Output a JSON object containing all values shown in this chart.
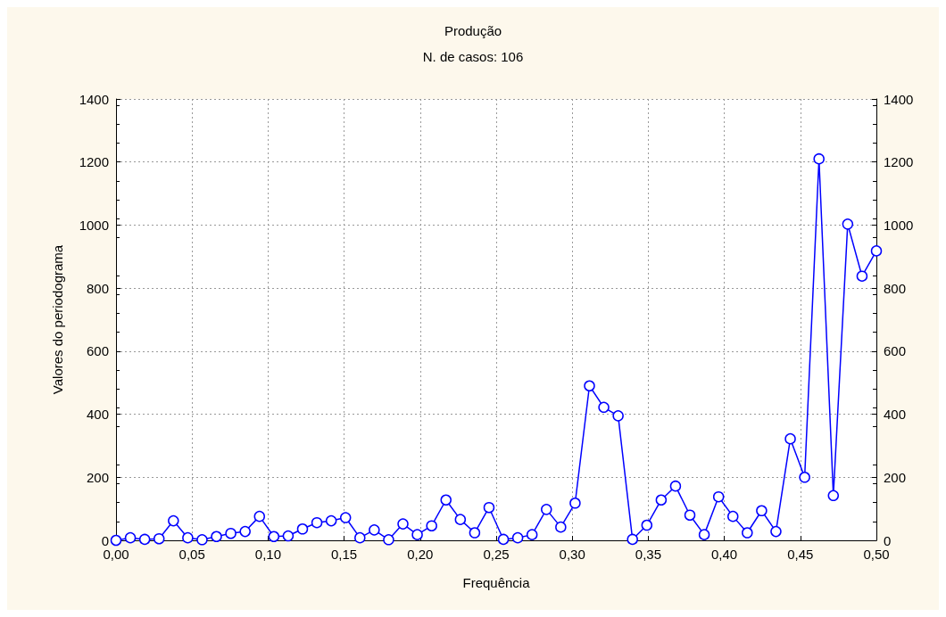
{
  "chart_data": {
    "type": "line",
    "title": "Produção",
    "subtitle": "N. de casos: 106",
    "xlabel": "Frequência",
    "ylabel": "Valores do periodograma",
    "x": [
      0,
      0.00943,
      0.01887,
      0.0283,
      0.03774,
      0.04717,
      0.0566,
      0.06604,
      0.07547,
      0.08491,
      0.09434,
      0.10377,
      0.11321,
      0.12264,
      0.13208,
      0.14151,
      0.15094,
      0.16038,
      0.16981,
      0.17925,
      0.18868,
      0.19811,
      0.20755,
      0.21698,
      0.22642,
      0.23585,
      0.24528,
      0.25472,
      0.26415,
      0.27358,
      0.28302,
      0.29245,
      0.30189,
      0.31132,
      0.32075,
      0.33019,
      0.33962,
      0.34906,
      0.35849,
      0.36792,
      0.37736,
      0.38679,
      0.39623,
      0.40566,
      0.41509,
      0.42453,
      0.43396,
      0.4434,
      0.45283,
      0.46226,
      0.4717,
      0.48113,
      0.49057,
      0.5
    ],
    "series": [
      {
        "color": "#0000ff",
        "values": [
          0,
          8,
          3,
          5,
          62,
          8,
          2,
          12,
          22,
          28,
          76,
          12,
          14,
          36,
          56,
          62,
          72,
          8,
          33,
          2,
          52,
          18,
          46,
          128,
          66,
          24,
          104,
          3,
          8,
          18,
          98,
          42,
          118,
          490,
          422,
          395,
          3,
          48,
          128,
          172,
          80,
          18,
          138,
          76,
          24,
          94,
          28,
          322,
          200,
          1210,
          142,
          1003,
          838,
          918
        ]
      }
    ],
    "xlim": [
      0,
      0.5
    ],
    "xticks": [
      {
        "value": 0,
        "label": "0,00"
      },
      {
        "value": 0.05,
        "label": "0,05"
      },
      {
        "value": 0.1,
        "label": "0,10"
      },
      {
        "value": 0.15,
        "label": "0,15"
      },
      {
        "value": 0.2,
        "label": "0,20"
      },
      {
        "value": 0.25,
        "label": "0,25"
      },
      {
        "value": 0.3,
        "label": "0,30"
      },
      {
        "value": 0.35,
        "label": "0,35"
      },
      {
        "value": 0.4,
        "label": "0,40"
      },
      {
        "value": 0.45,
        "label": "0,45"
      },
      {
        "value": 0.5,
        "label": "0,50"
      }
    ],
    "ylim": [
      0,
      1400
    ],
    "yticks": [
      0,
      200,
      400,
      600,
      800,
      1000,
      1200,
      1400
    ],
    "y2lim": [
      0,
      1400
    ],
    "y2ticks": [
      0,
      200,
      400,
      600,
      800,
      1000,
      1200,
      1400
    ],
    "grid": true,
    "marker": "circle",
    "line_style": "solid"
  }
}
